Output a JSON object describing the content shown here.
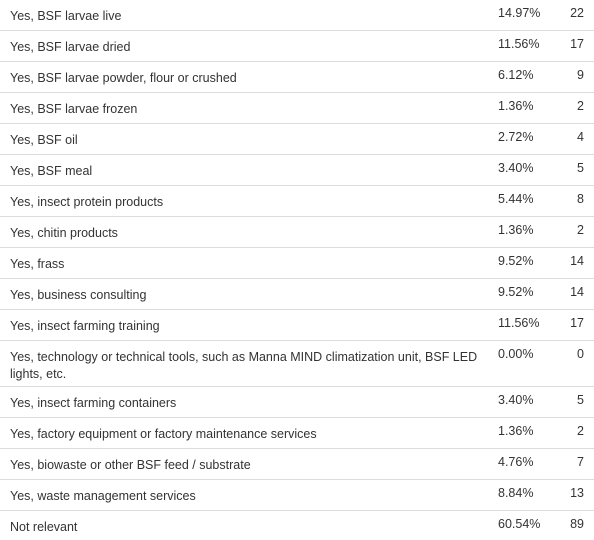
{
  "rows": [
    {
      "label": "Yes, BSF larvae live",
      "percent": "14.97%",
      "count": "22"
    },
    {
      "label": "Yes, BSF larvae dried",
      "percent": "11.56%",
      "count": "17"
    },
    {
      "label": "Yes, BSF larvae powder, flour or crushed",
      "percent": "6.12%",
      "count": "9"
    },
    {
      "label": "Yes, BSF larvae frozen",
      "percent": "1.36%",
      "count": "2"
    },
    {
      "label": "Yes, BSF oil",
      "percent": "2.72%",
      "count": "4"
    },
    {
      "label": "Yes, BSF meal",
      "percent": "3.40%",
      "count": "5"
    },
    {
      "label": "Yes, insect protein products",
      "percent": "5.44%",
      "count": "8"
    },
    {
      "label": "Yes, chitin products",
      "percent": "1.36%",
      "count": "2"
    },
    {
      "label": "Yes, frass",
      "percent": "9.52%",
      "count": "14"
    },
    {
      "label": "Yes, business consulting",
      "percent": "9.52%",
      "count": "14"
    },
    {
      "label": "Yes, insect farming training",
      "percent": "11.56%",
      "count": "17"
    },
    {
      "label": "Yes, technology or technical tools, such as Manna MIND climatization unit, BSF LED lights, etc.",
      "percent": "0.00%",
      "count": "0"
    },
    {
      "label": "Yes, insect farming containers",
      "percent": "3.40%",
      "count": "5"
    },
    {
      "label": "Yes, factory equipment or factory maintenance services",
      "percent": "1.36%",
      "count": "2"
    },
    {
      "label": "Yes, biowaste or other BSF feed / substrate",
      "percent": "4.76%",
      "count": "7"
    },
    {
      "label": "Yes, waste management services",
      "percent": "8.84%",
      "count": "13"
    },
    {
      "label": "Not relevant",
      "percent": "60.54%",
      "count": "89"
    }
  ]
}
